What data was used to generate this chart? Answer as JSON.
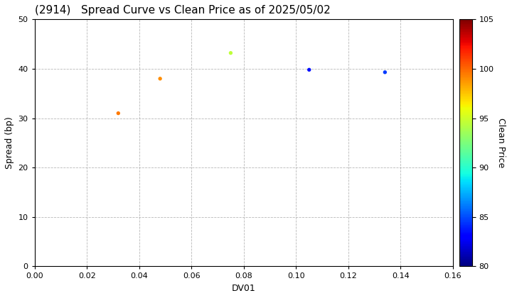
{
  "title": "(2914)   Spread Curve vs Clean Price as of 2025/05/02",
  "xlabel": "DV01",
  "ylabel": "Spread (bp)",
  "colorbar_label": "Clean Price",
  "xlim": [
    0.0,
    0.16
  ],
  "ylim": [
    0,
    50
  ],
  "xticks": [
    0.0,
    0.02,
    0.04,
    0.06,
    0.08,
    0.1,
    0.12,
    0.14,
    0.16
  ],
  "yticks": [
    0,
    10,
    20,
    30,
    40,
    50
  ],
  "colorbar_min": 80,
  "colorbar_max": 105,
  "colorbar_ticks": [
    80,
    85,
    90,
    95,
    100,
    105
  ],
  "points": [
    {
      "dv01": 0.032,
      "spread": 31.0,
      "clean_price": 99.5
    },
    {
      "dv01": 0.048,
      "spread": 38.0,
      "clean_price": 99.0
    },
    {
      "dv01": 0.075,
      "spread": 43.2,
      "clean_price": 94.5
    },
    {
      "dv01": 0.105,
      "spread": 39.8,
      "clean_price": 83.5
    },
    {
      "dv01": 0.134,
      "spread": 39.3,
      "clean_price": 84.5
    }
  ],
  "marker_size": 15,
  "background_color": "#ffffff",
  "grid_color": "#999999",
  "figsize": [
    7.2,
    4.2
  ],
  "dpi": 100
}
